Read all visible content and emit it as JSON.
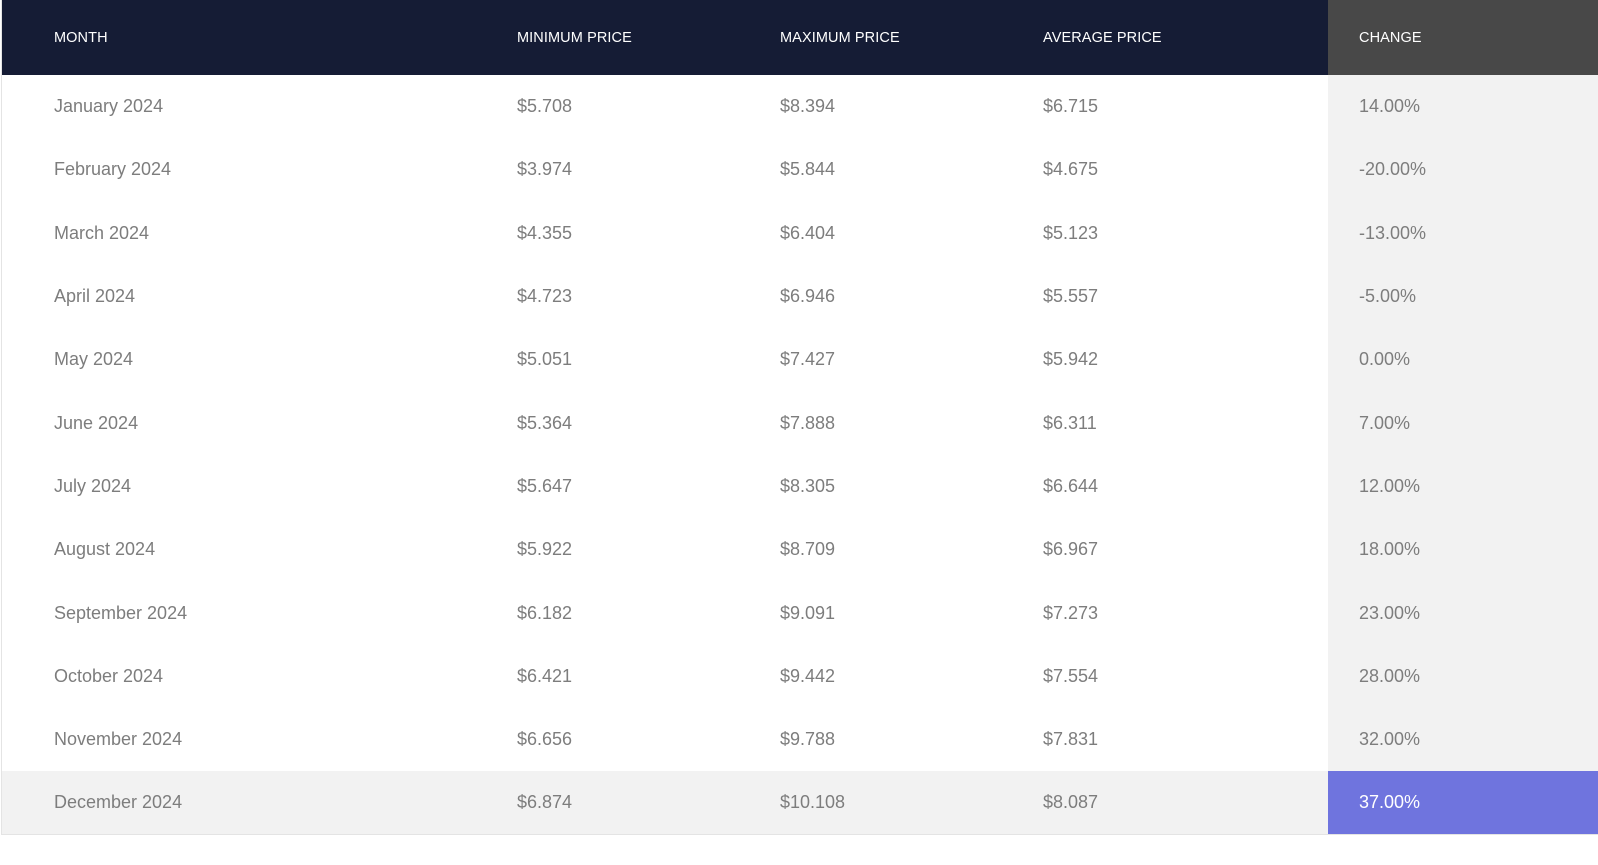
{
  "table": {
    "headers": {
      "month": "MONTH",
      "min": "MINIMUM PRICE",
      "max": "MAXIMUM PRICE",
      "avg": "AVERAGE PRICE",
      "change": "CHANGE"
    },
    "rows": [
      {
        "month": "January 2024",
        "min": "$5.708",
        "max": "$8.394",
        "avg": "$6.715",
        "change": "14.00%"
      },
      {
        "month": "February 2024",
        "min": "$3.974",
        "max": "$5.844",
        "avg": "$4.675",
        "change": "-20.00%"
      },
      {
        "month": "March 2024",
        "min": "$4.355",
        "max": "$6.404",
        "avg": "$5.123",
        "change": "-13.00%"
      },
      {
        "month": "April 2024",
        "min": "$4.723",
        "max": "$6.946",
        "avg": "$5.557",
        "change": "-5.00%"
      },
      {
        "month": "May 2024",
        "min": "$5.051",
        "max": "$7.427",
        "avg": "$5.942",
        "change": "0.00%"
      },
      {
        "month": "June 2024",
        "min": "$5.364",
        "max": "$7.888",
        "avg": "$6.311",
        "change": "7.00%"
      },
      {
        "month": "July 2024",
        "min": "$5.647",
        "max": "$8.305",
        "avg": "$6.644",
        "change": "12.00%"
      },
      {
        "month": "August 2024",
        "min": "$5.922",
        "max": "$8.709",
        "avg": "$6.967",
        "change": "18.00%"
      },
      {
        "month": "September 2024",
        "min": "$6.182",
        "max": "$9.091",
        "avg": "$7.273",
        "change": "23.00%"
      },
      {
        "month": "October 2024",
        "min": "$6.421",
        "max": "$9.442",
        "avg": "$7.554",
        "change": "28.00%"
      },
      {
        "month": "November 2024",
        "min": "$6.656",
        "max": "$9.788",
        "avg": "$7.831",
        "change": "32.00%"
      },
      {
        "month": "December 2024",
        "min": "$6.874",
        "max": "$10.108",
        "avg": "$8.087",
        "change": "37.00%"
      }
    ]
  },
  "colors": {
    "header_bg": "#151c35",
    "change_header_bg": "#484848",
    "change_col_bg": "#f2f2f2",
    "highlight_bg": "#6f74de",
    "body_text": "#7d7d7d"
  }
}
